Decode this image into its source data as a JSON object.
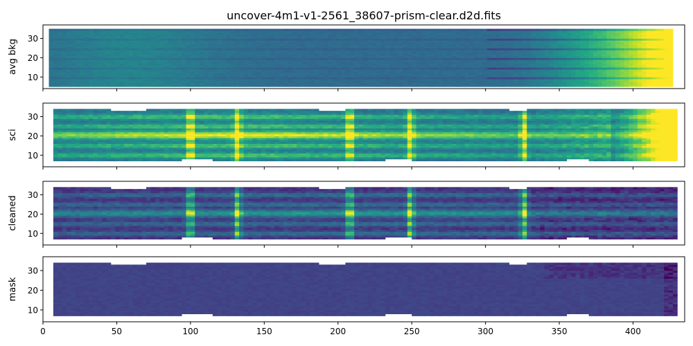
{
  "figure": {
    "title": "uncover-4m1-v1-2561_38607-prism-clear.d2d.fits"
  },
  "chart_data": {
    "type": "heatmap",
    "colormap": "viridis",
    "shared_x": true,
    "xlim": [
      0,
      435
    ],
    "xticks": [
      0,
      50,
      100,
      150,
      200,
      250,
      300,
      350,
      400
    ],
    "ylim": [
      4,
      37
    ],
    "yticks": [
      10,
      20,
      30
    ],
    "spectrum_x_range": [
      7,
      428
    ],
    "trace_rows": [
      10,
      15,
      20.5,
      25,
      30
    ],
    "emission_columns": [
      100,
      132,
      208,
      249,
      326
    ],
    "panels": [
      {
        "ylabel": "avg bkg",
        "pattern": "smooth background, brightening toward long wavelength",
        "x_range": [
          4,
          427
        ],
        "y_range": [
          5,
          35
        ]
      },
      {
        "ylabel": "sci",
        "pattern": "science frame with central trace and bright red end",
        "x_range": [
          7,
          428
        ],
        "y_range": [
          7,
          34
        ]
      },
      {
        "ylabel": "cleaned",
        "pattern": "background subtracted, trace and emission lines",
        "x_range": [
          7,
          428
        ],
        "y_range": [
          7,
          34
        ]
      },
      {
        "ylabel": "mask",
        "pattern": "mostly flat, low values",
        "x_range": [
          7,
          428
        ],
        "y_range": [
          7,
          34
        ]
      }
    ]
  }
}
